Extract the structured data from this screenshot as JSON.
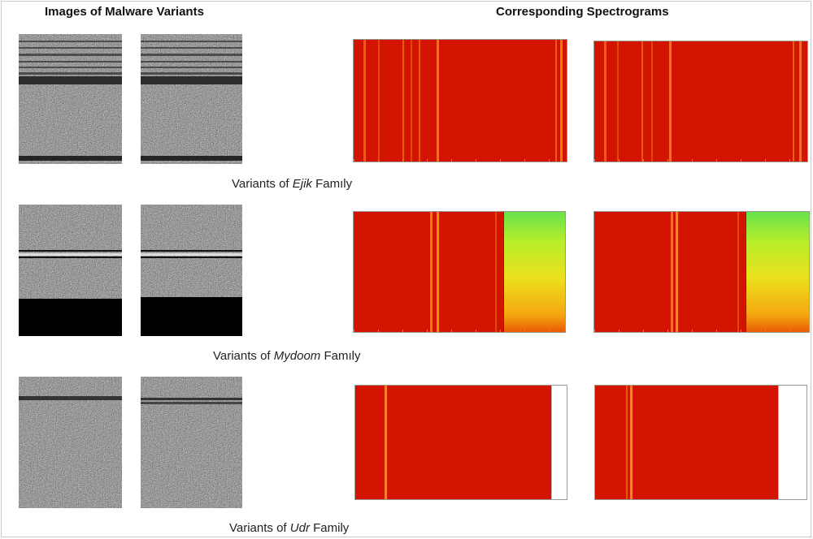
{
  "headers": {
    "left": "Images of Malware Variants",
    "right": "Corresponding Spectrograms"
  },
  "families": [
    {
      "prefix": "Variants of ",
      "name": "Ejik",
      "suffix": " Famıly"
    },
    {
      "prefix": "Variants of ",
      "name": "Mydoom",
      "suffix": " Famıly"
    },
    {
      "prefix": "Variants of ",
      "name": "Udr",
      "suffix": " Family"
    }
  ]
}
